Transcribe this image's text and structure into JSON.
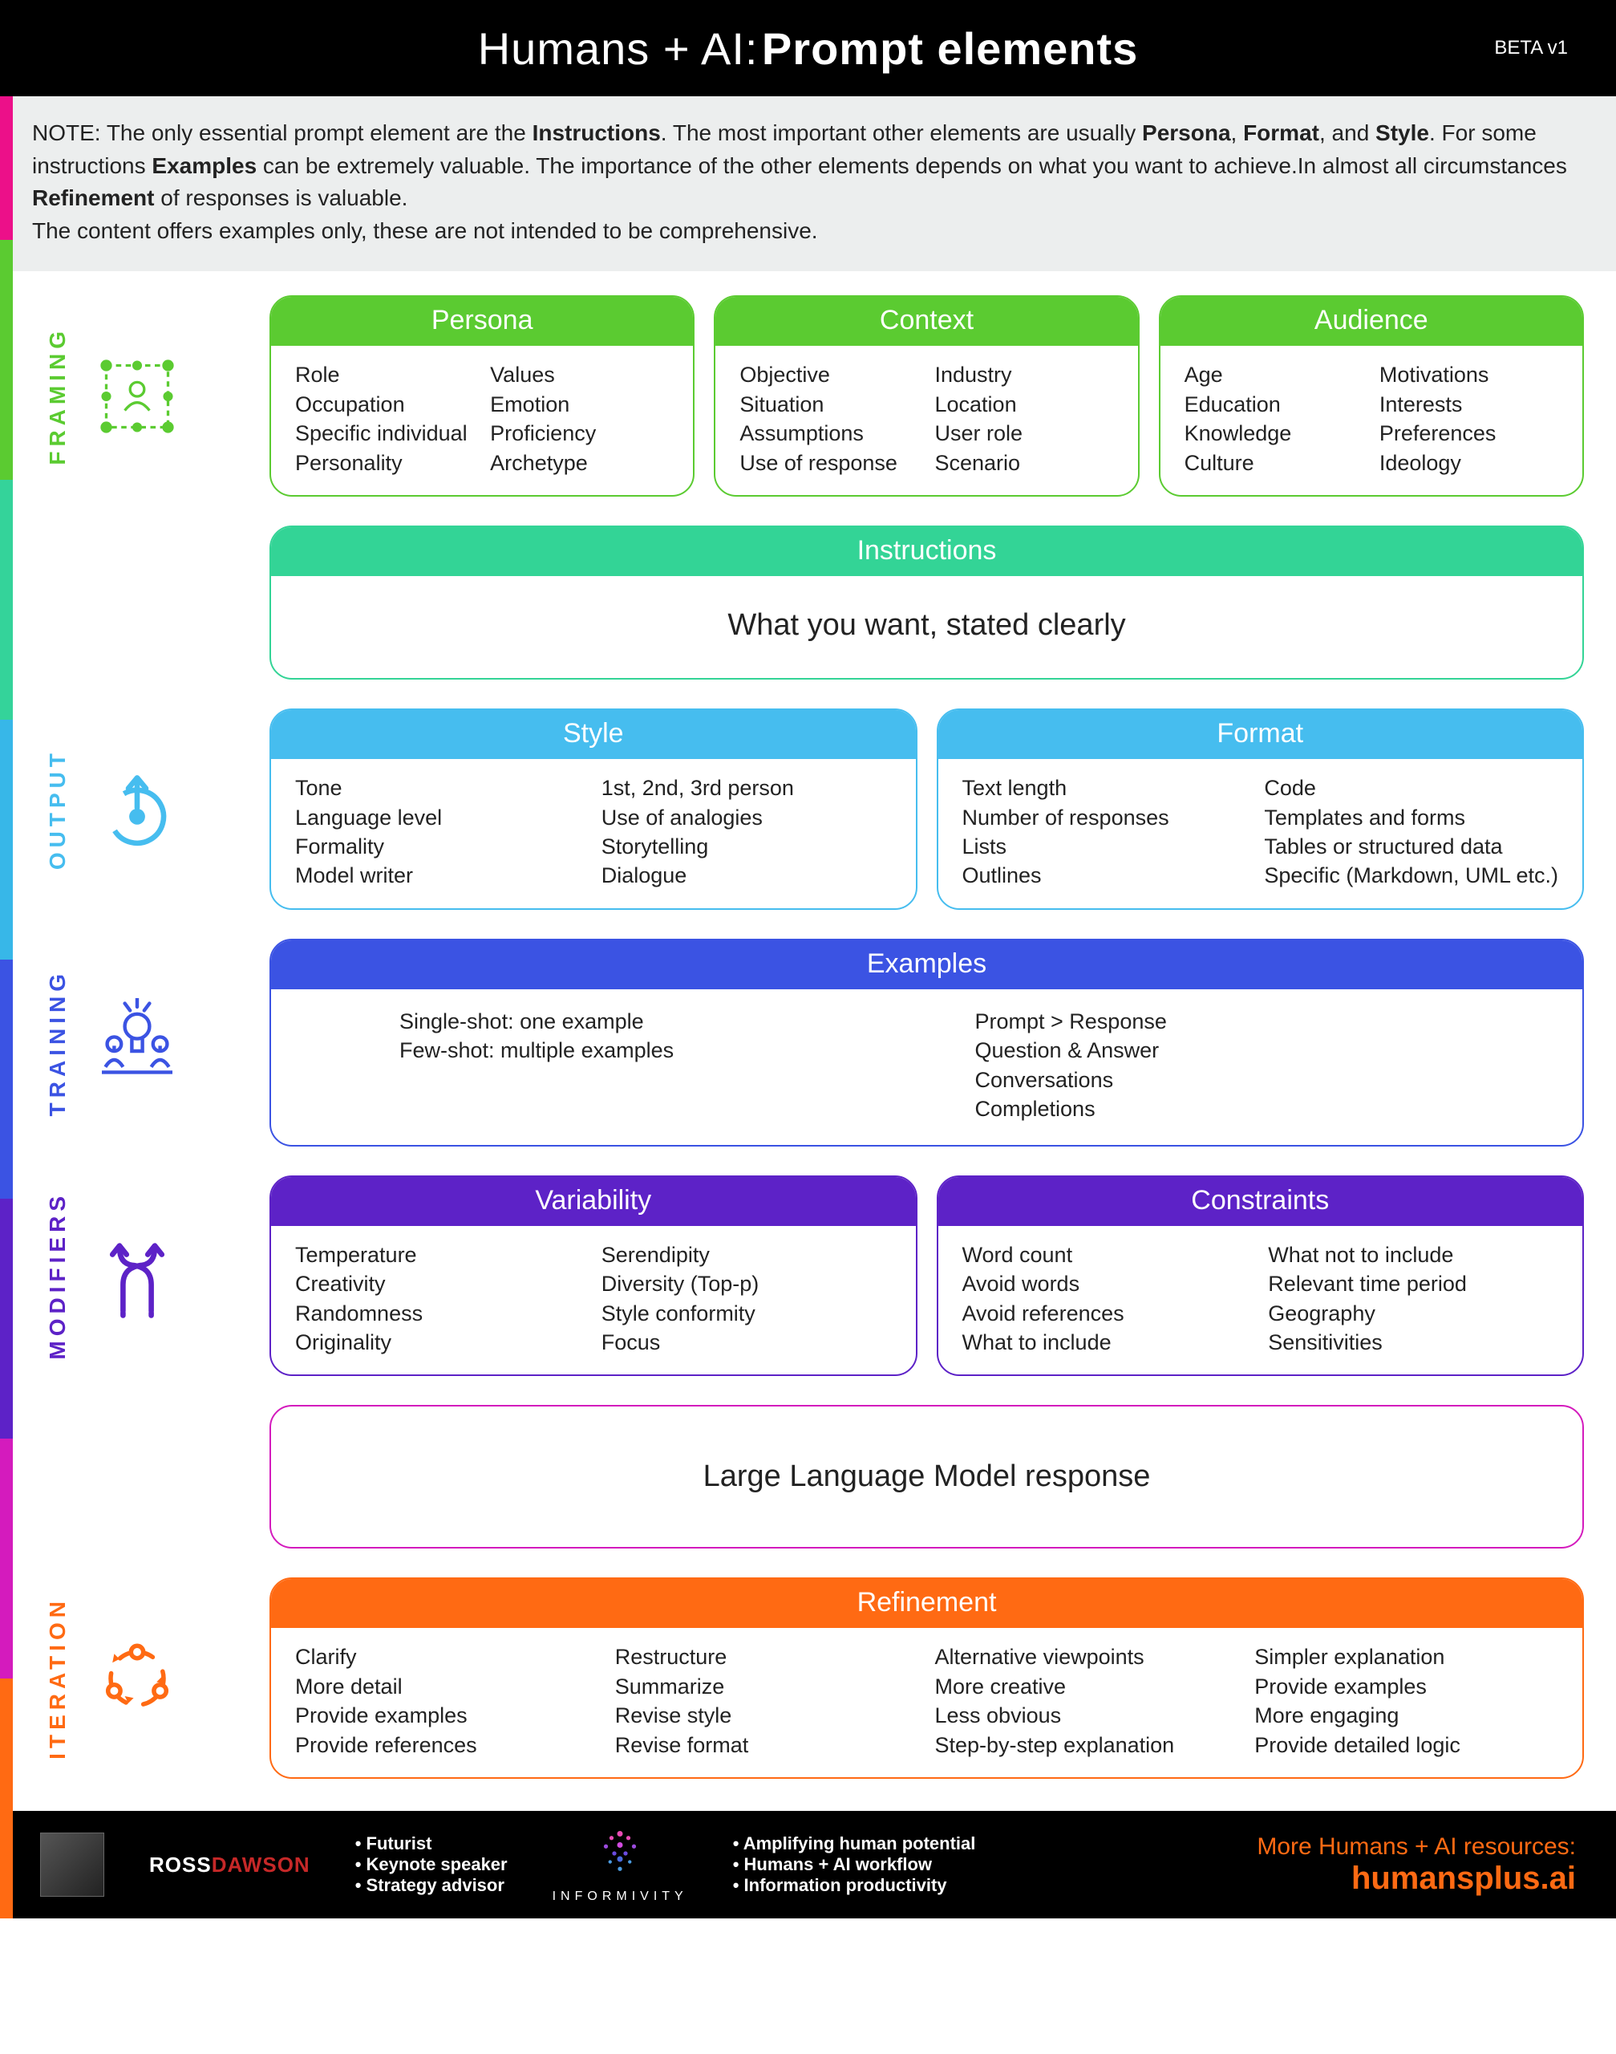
{
  "header": {
    "title_light": "Humans + AI:",
    "title_bold": "Prompt elements",
    "beta": "BETA v1"
  },
  "note_html": "NOTE: The only essential prompt element are the <b>Instructions</b>. The most important other elements are usually <b>Persona</b>, <b>Format</b>, and <b>Style</b>. For some instructions <b>Examples</b> can be extremely valuable. The importance of the other elements depends on what you want to achieve.In almost all circumstances <b>Refinement</b> of responses is valuable.<br>The content offers examples only, these are not intended to be comprehensive.",
  "edge_colors": [
    "#ec1089",
    "#5bcb31",
    "#34d39a",
    "#37b7e8",
    "#3b53e3",
    "#5d22c7",
    "#d41bbd",
    "#ff6a13"
  ],
  "sections": {
    "framing": {
      "label": "FRAMING",
      "color": "#5bcb31",
      "cards": [
        {
          "title": "Persona",
          "cols": [
            [
              "Role",
              "Occupation",
              "Specific individual",
              "Personality"
            ],
            [
              "Values",
              "Emotion",
              "Proficiency",
              "Archetype"
            ]
          ]
        },
        {
          "title": "Context",
          "cols": [
            [
              "Objective",
              "Situation",
              "Assumptions",
              "Use of response"
            ],
            [
              "Industry",
              "Location",
              "User role",
              "Scenario"
            ]
          ]
        },
        {
          "title": "Audience",
          "cols": [
            [
              "Age",
              "Education",
              "Knowledge",
              "Culture"
            ],
            [
              "Motivations",
              "Interests",
              "Preferences",
              "Ideology"
            ]
          ]
        }
      ]
    },
    "instructions": {
      "color": "#33d496",
      "title": "Instructions",
      "body": "What you want, stated clearly"
    },
    "output": {
      "label": "OUTPUT",
      "color": "#46bdef",
      "cards": [
        {
          "title": "Style",
          "cols": [
            [
              "Tone",
              "Language level",
              "Formality",
              "Model writer"
            ],
            [
              "1st, 2nd, 3rd person",
              "Use of analogies",
              "Storytelling",
              "Dialogue"
            ]
          ]
        },
        {
          "title": "Format",
          "cols": [
            [
              "Text length",
              "Number of responses",
              "Lists",
              "Outlines"
            ],
            [
              "Code",
              "Templates and forms",
              "Tables or structured data",
              "Specific  (Markdown, UML etc.)"
            ]
          ]
        }
      ]
    },
    "training": {
      "label": "TRAINING",
      "color": "#3b53e3",
      "card": {
        "title": "Examples",
        "cols": [
          [
            "Single-shot: one example",
            "Few-shot: multiple examples"
          ],
          [
            "Prompt > Response",
            "Question & Answer",
            "Conversations",
            "Completions"
          ]
        ]
      }
    },
    "modifiers": {
      "label": "MODIFIERS",
      "color": "#5d22c7",
      "cards": [
        {
          "title": "Variability",
          "cols": [
            [
              "Temperature",
              "Creativity",
              "Randomness",
              "Originality"
            ],
            [
              "Serendipity",
              "Diversity (Top-p)",
              "Style conformity",
              "Focus"
            ]
          ]
        },
        {
          "title": "Constraints",
          "cols": [
            [
              "Word count",
              "Avoid words",
              "Avoid references",
              "What to include"
            ],
            [
              "What not to include",
              "Relevant time period",
              "Geography",
              "Sensitivities"
            ]
          ]
        }
      ]
    },
    "llm": {
      "color": "#d41bbd",
      "body": "Large Language Model response"
    },
    "iteration": {
      "label": "ITERATION",
      "color": "#ff6a13",
      "card": {
        "title": "Refinement",
        "cols": [
          [
            "Clarify",
            "More detail",
            "Provide examples",
            "Provide references"
          ],
          [
            "Restructure",
            "Summarize",
            "Revise style",
            "Revise format"
          ],
          [
            "Alternative viewpoints",
            "More creative",
            "Less obvious",
            "Step-by-step explanation"
          ],
          [
            "Simpler explanation",
            "Provide examples",
            "More engaging",
            "Provide detailed logic"
          ]
        ]
      }
    }
  },
  "footer": {
    "ross_first": "ROSS",
    "ross_last": "DAWSON",
    "ross_roles": [
      "Futurist",
      "Keynote speaker",
      "Strategy advisor"
    ],
    "informivity": "INFORMIVITY",
    "informivity_points": [
      "Amplifying human potential",
      "Humans + AI workflow",
      "Information productivity"
    ],
    "resources_label": "More Humans + AI resources:",
    "resources_url": "humansplus.ai"
  }
}
